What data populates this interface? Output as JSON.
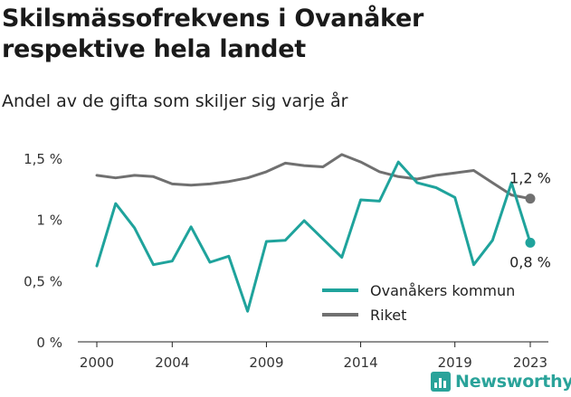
{
  "chart_data": {
    "type": "line",
    "title": "Skilsmässofrekvens i Ovanåker respektive hela landet",
    "subtitle": "Andel av de gifta som skiljer sig varje år",
    "xlabel": "",
    "ylabel": "",
    "x": [
      2000,
      2001,
      2002,
      2003,
      2004,
      2005,
      2006,
      2007,
      2008,
      2009,
      2010,
      2011,
      2012,
      2013,
      2014,
      2015,
      2016,
      2017,
      2018,
      2019,
      2020,
      2021,
      2022,
      2023
    ],
    "xticks": [
      2000,
      2004,
      2009,
      2014,
      2019,
      2023
    ],
    "xtick_labels": [
      "2000",
      "2004",
      "2009",
      "2014",
      "2019",
      "2023"
    ],
    "xlim": [
      2000,
      2023
    ],
    "ylim": [
      0,
      1.5
    ],
    "yticks": [
      0,
      0.5,
      1,
      1.5
    ],
    "ytick_labels": [
      "0 %",
      "0,5 %",
      "1 %",
      "1,5 %"
    ],
    "grid": false,
    "legend_position": "bottom-right",
    "series": [
      {
        "name": "Ovanåkers kommun",
        "color": "#1fa39c",
        "values": [
          0.62,
          1.13,
          0.93,
          0.63,
          0.66,
          0.94,
          0.65,
          0.7,
          0.25,
          0.82,
          0.83,
          0.99,
          0.84,
          0.69,
          1.16,
          1.15,
          1.47,
          1.3,
          1.26,
          1.18,
          0.63,
          0.83,
          1.3,
          0.81
        ],
        "end_label": "0,8 %"
      },
      {
        "name": "Riket",
        "color": "#707070",
        "values": [
          1.36,
          1.34,
          1.36,
          1.35,
          1.29,
          1.28,
          1.29,
          1.31,
          1.34,
          1.39,
          1.46,
          1.44,
          1.43,
          1.53,
          1.47,
          1.39,
          1.35,
          1.33,
          1.36,
          1.38,
          1.4,
          1.3,
          1.2,
          1.17
        ],
        "end_label": "1,2 %"
      }
    ]
  },
  "brand": {
    "name": "Newsworthy",
    "color": "#2aa39a"
  }
}
